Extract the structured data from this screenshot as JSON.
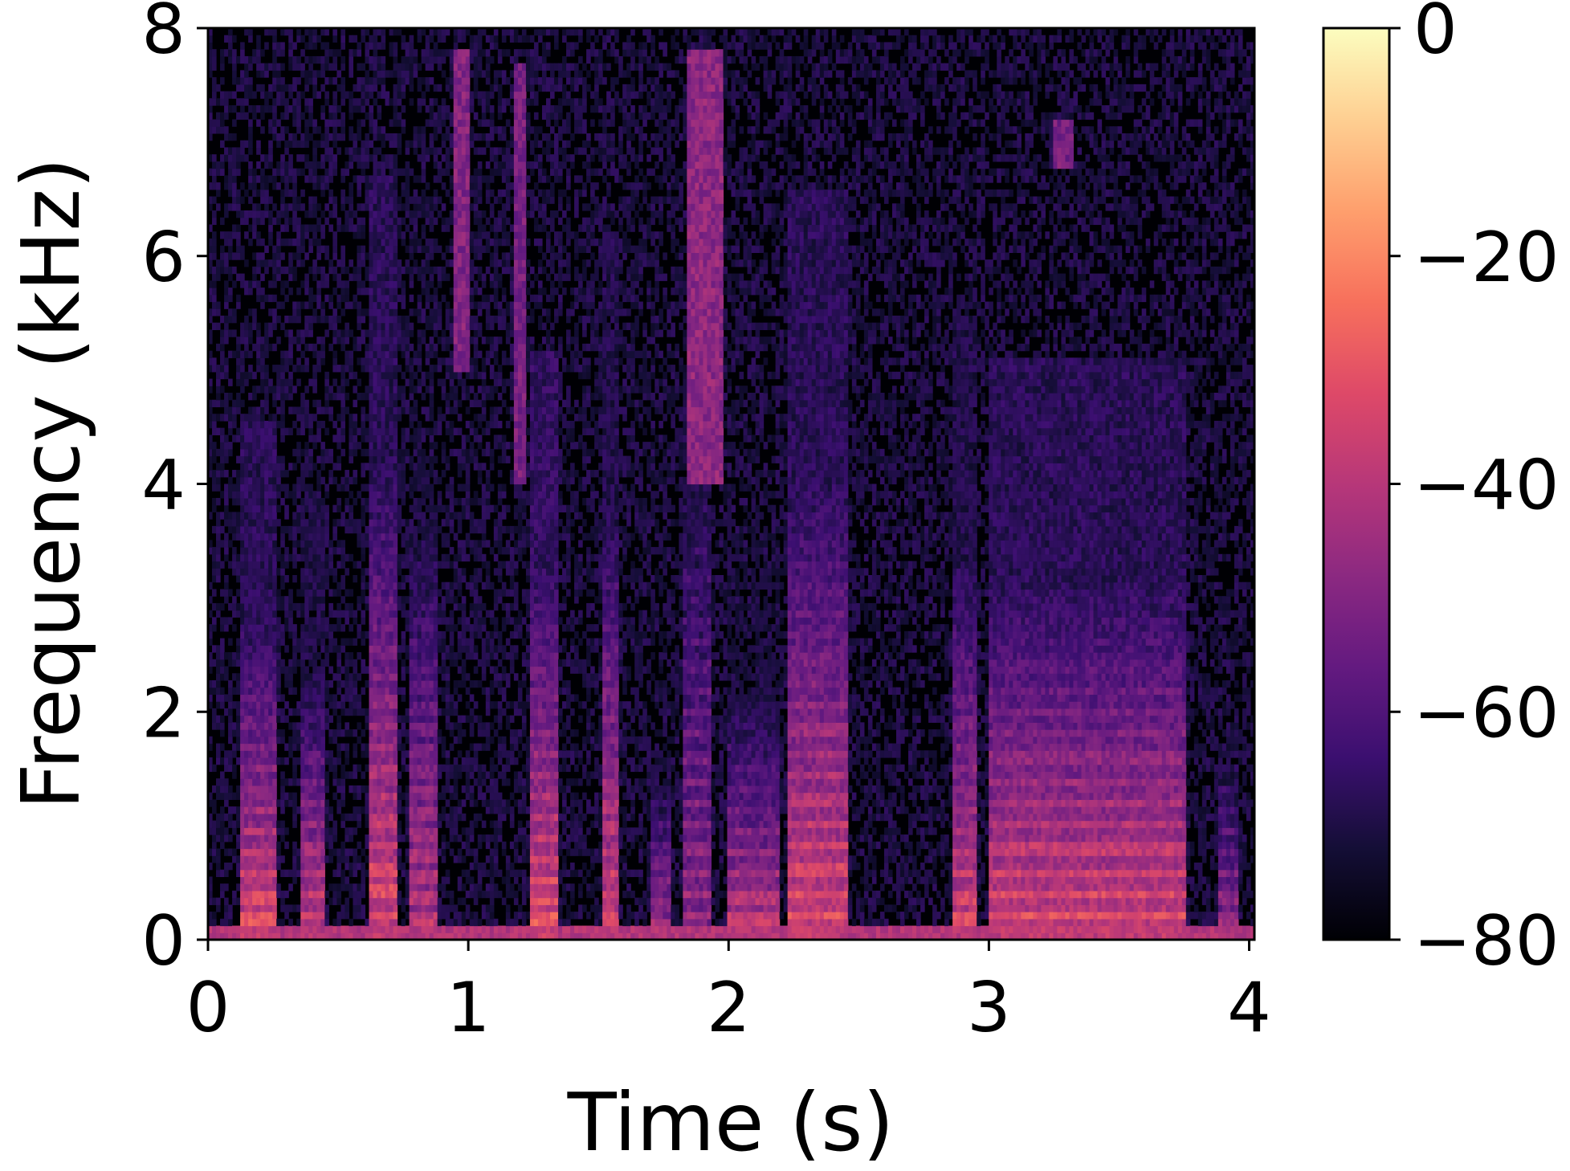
{
  "chart_data": {
    "type": "heatmap",
    "subtype": "spectrogram",
    "title": "",
    "xlabel": "Time (s)",
    "ylabel": "Frequency (kHz)",
    "xlim": [
      0,
      4.02
    ],
    "ylim": [
      0,
      8
    ],
    "xticks": [
      0,
      1,
      2,
      3,
      4
    ],
    "yticks": [
      0,
      2,
      4,
      6,
      8
    ],
    "colormap": "magma",
    "colorbar": {
      "vmin": -80,
      "vmax": 0,
      "ticks": [
        0,
        -20,
        -40,
        -60,
        -80
      ],
      "tick_labels": [
        "0",
        "−20",
        "−40",
        "−60",
        "−80"
      ],
      "units": ""
    },
    "background_level_db": -80,
    "colors": {
      "min": "#000004",
      "max": "#fcfdbf"
    },
    "voiced_segments": [
      {
        "t_start": 0.12,
        "t_end": 0.27,
        "f0_hz": 190,
        "harmonics": 15,
        "level_db": -30
      },
      {
        "t_start": 0.35,
        "t_end": 0.45,
        "f0_hz": 200,
        "harmonics": 12,
        "level_db": -33
      },
      {
        "t_start": 0.62,
        "t_end": 0.72,
        "f0_hz": 210,
        "harmonics": 20,
        "level_db": -30
      },
      {
        "t_start": 0.77,
        "t_end": 0.88,
        "f0_hz": 185,
        "harmonics": 22,
        "level_db": -38
      },
      {
        "t_start": 1.24,
        "t_end": 1.34,
        "f0_hz": 180,
        "harmonics": 18,
        "level_db": -28
      },
      {
        "t_start": 1.52,
        "t_end": 1.58,
        "f0_hz": 195,
        "harmonics": 20,
        "level_db": -32
      },
      {
        "t_start": 1.7,
        "t_end": 1.78,
        "f0_hz": 170,
        "harmonics": 10,
        "level_db": -40
      },
      {
        "t_start": 1.82,
        "t_end": 1.94,
        "f0_hz": 200,
        "harmonics": 30,
        "level_db": -44
      },
      {
        "t_start": 2.0,
        "t_end": 2.2,
        "f0_hz": 190,
        "harmonics": 12,
        "level_db": -36
      },
      {
        "t_start": 2.22,
        "t_end": 2.46,
        "f0_hz": 205,
        "harmonics": 20,
        "level_db": -30
      },
      {
        "t_start": 2.86,
        "t_end": 2.96,
        "f0_hz": 190,
        "harmonics": 18,
        "level_db": -32
      },
      {
        "t_start": 3.0,
        "t_end": 3.75,
        "f0_hz": 200,
        "harmonics": 16,
        "level_db": -30
      },
      {
        "t_start": 3.88,
        "t_end": 3.96,
        "f0_hz": 190,
        "harmonics": 12,
        "level_db": -44
      }
    ],
    "unvoiced_segments": [
      {
        "t_start": 0.95,
        "t_end": 1.0,
        "f_low_hz": 5000,
        "f_high_hz": 7800,
        "level_db": -50
      },
      {
        "t_start": 1.18,
        "t_end": 1.22,
        "f_low_hz": 4000,
        "f_high_hz": 7700,
        "level_db": -52
      },
      {
        "t_start": 1.84,
        "t_end": 1.98,
        "f_low_hz": 4000,
        "f_high_hz": 7800,
        "level_db": -48
      },
      {
        "t_start": 3.25,
        "t_end": 3.32,
        "f_low_hz": 6800,
        "f_high_hz": 7200,
        "level_db": -52
      }
    ]
  }
}
